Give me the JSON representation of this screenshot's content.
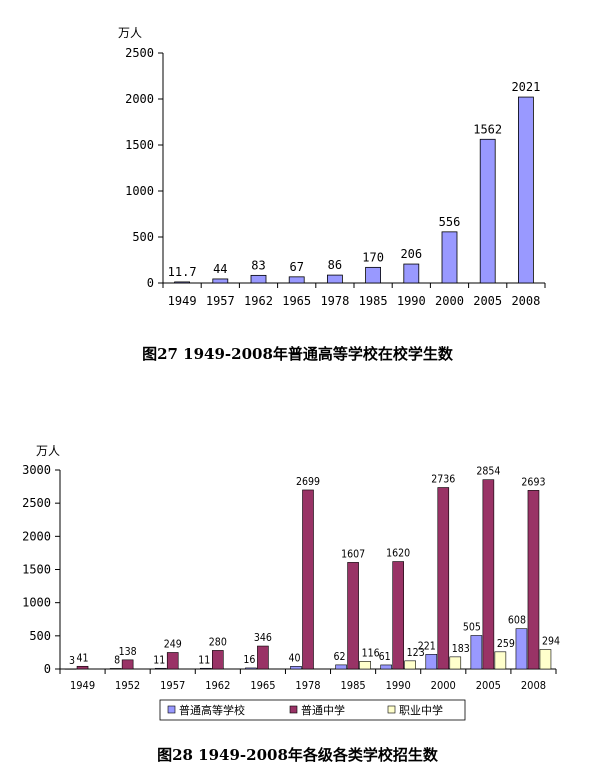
{
  "chart_data": [
    {
      "type": "bar",
      "unit_label": "万人",
      "title": "图27  1949-2008年普通高等学校在校学生数",
      "categories": [
        "1949",
        "1957",
        "1962",
        "1965",
        "1978",
        "1985",
        "1990",
        "2000",
        "2005",
        "2008"
      ],
      "values": [
        11.7,
        44,
        83,
        67,
        86,
        170,
        206,
        556,
        1562,
        2021
      ],
      "value_labels": [
        "11.7",
        "44",
        "83",
        "67",
        "86",
        "170",
        "206",
        "556",
        "1562",
        "2021"
      ],
      "ylim": [
        0,
        2500
      ],
      "yticks": [
        0,
        500,
        1000,
        1500,
        2000,
        2500
      ],
      "grid": false,
      "colors": {
        "bar": "#9999ff"
      }
    },
    {
      "type": "bar",
      "unit_label": "万人",
      "title": "图28  1949-2008年各级各类学校招生数",
      "categories": [
        "1949",
        "1952",
        "1957",
        "1962",
        "1965",
        "1978",
        "1985",
        "1990",
        "2000",
        "2005",
        "2008"
      ],
      "series": [
        {
          "name": "普通高等学校",
          "values": [
            3,
            8,
            11,
            11,
            16,
            40,
            62,
            61,
            221,
            505,
            608
          ],
          "color": "#9999ff"
        },
        {
          "name": "普通中学",
          "values": [
            41,
            138,
            249,
            280,
            346,
            2699,
            1607,
            1620,
            2736,
            2854,
            2693
          ],
          "color": "#993366"
        },
        {
          "name": "职业中学",
          "values": [
            null,
            null,
            null,
            null,
            null,
            null,
            116,
            123,
            183,
            259,
            294
          ],
          "color": "#ffffcc"
        }
      ],
      "ylim": [
        0,
        3000
      ],
      "yticks": [
        0,
        500,
        1000,
        1500,
        2000,
        2500,
        3000
      ],
      "grid": false,
      "legend_position": "bottom"
    }
  ]
}
